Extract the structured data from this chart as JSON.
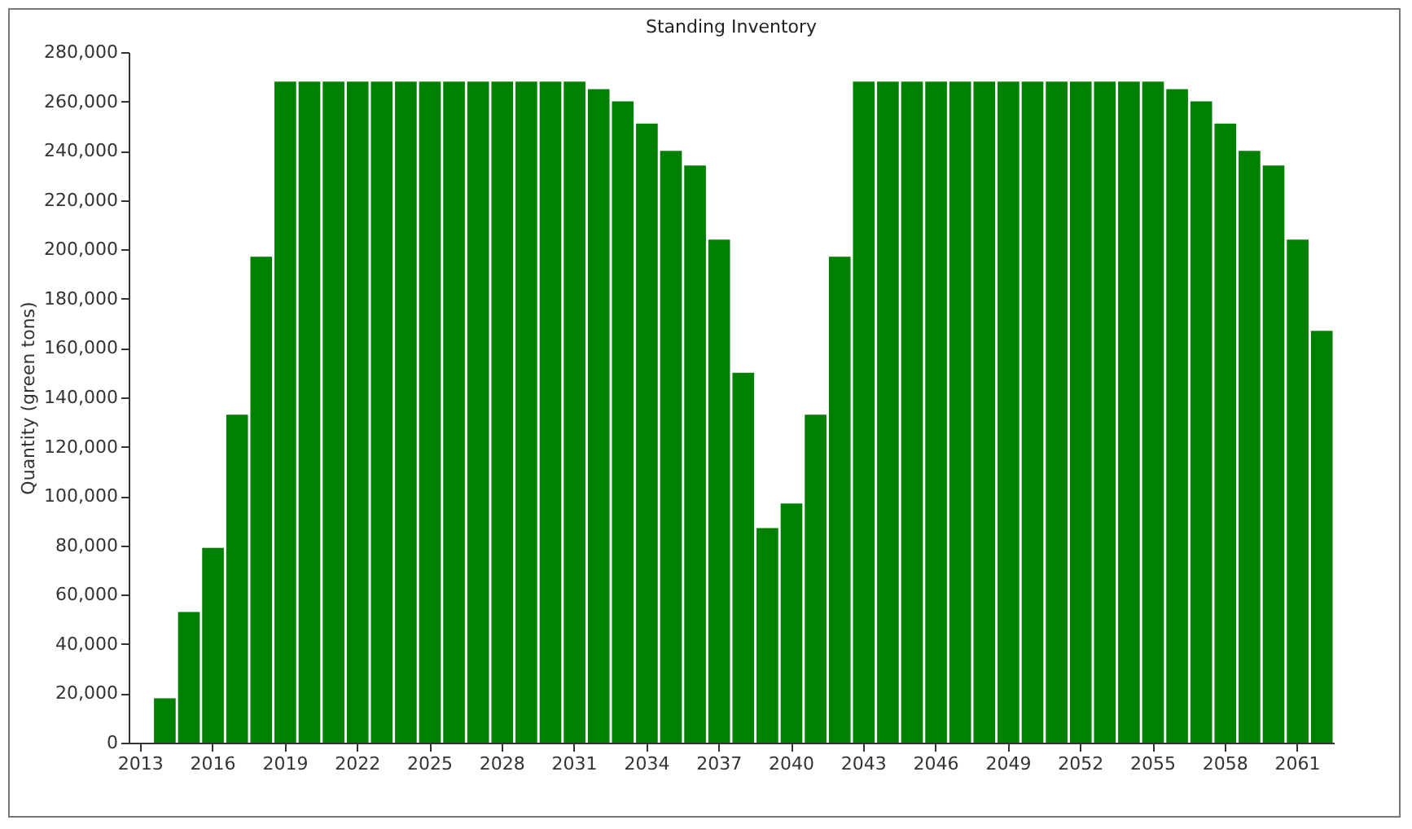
{
  "chart_data": {
    "type": "bar",
    "title": "Standing Inventory",
    "ylabel": "Quantity (green tons)",
    "categories": [
      "2013",
      null,
      null,
      "2016",
      null,
      null,
      "2019",
      null,
      null,
      "2022",
      null,
      null,
      "2025",
      null,
      null,
      "2028",
      null,
      null,
      "2031",
      null,
      null,
      "2034",
      null,
      null,
      "2037",
      null,
      null,
      "2040",
      null,
      null,
      "2043",
      null,
      null,
      "2046",
      null,
      null,
      "2049",
      null,
      null,
      "2052",
      null,
      null,
      "2055",
      null,
      null,
      "2058",
      null,
      null,
      "2061",
      null
    ],
    "values": [
      0,
      18000,
      53000,
      79000,
      133000,
      197000,
      268000,
      268000,
      268000,
      268000,
      268000,
      268000,
      268000,
      268000,
      268000,
      268000,
      268000,
      268000,
      268000,
      265000,
      260000,
      251000,
      240000,
      234000,
      204000,
      150000,
      87000,
      97000,
      133000,
      197000,
      268000,
      268000,
      268000,
      268000,
      268000,
      268000,
      268000,
      268000,
      268000,
      268000,
      268000,
      268000,
      268000,
      265000,
      260000,
      251000,
      240000,
      234000,
      204000,
      167000
    ],
    "color": "#008000",
    "ylim": [
      0,
      280000
    ],
    "yticks": [
      0,
      {
        "value": 20000,
        "label": "20,000"
      },
      {
        "value": 40000,
        "label": "40,000"
      },
      {
        "value": 60000,
        "label": "60,000"
      },
      {
        "value": 80000,
        "label": "80,000"
      },
      {
        "value": 100000,
        "label": "100,000"
      },
      {
        "value": 120000,
        "label": "120,000"
      },
      {
        "value": 140000,
        "label": "140,000"
      },
      {
        "value": 160000,
        "label": "160,000"
      },
      {
        "value": 180000,
        "label": "180,000"
      },
      {
        "value": 200000,
        "label": "200,000"
      },
      {
        "value": 220000,
        "label": "220,000"
      },
      {
        "value": 240000,
        "label": "240,000"
      },
      {
        "value": 260000,
        "label": "260,000"
      },
      {
        "value": 280000,
        "label": "280,000"
      }
    ],
    "grid": false
  }
}
